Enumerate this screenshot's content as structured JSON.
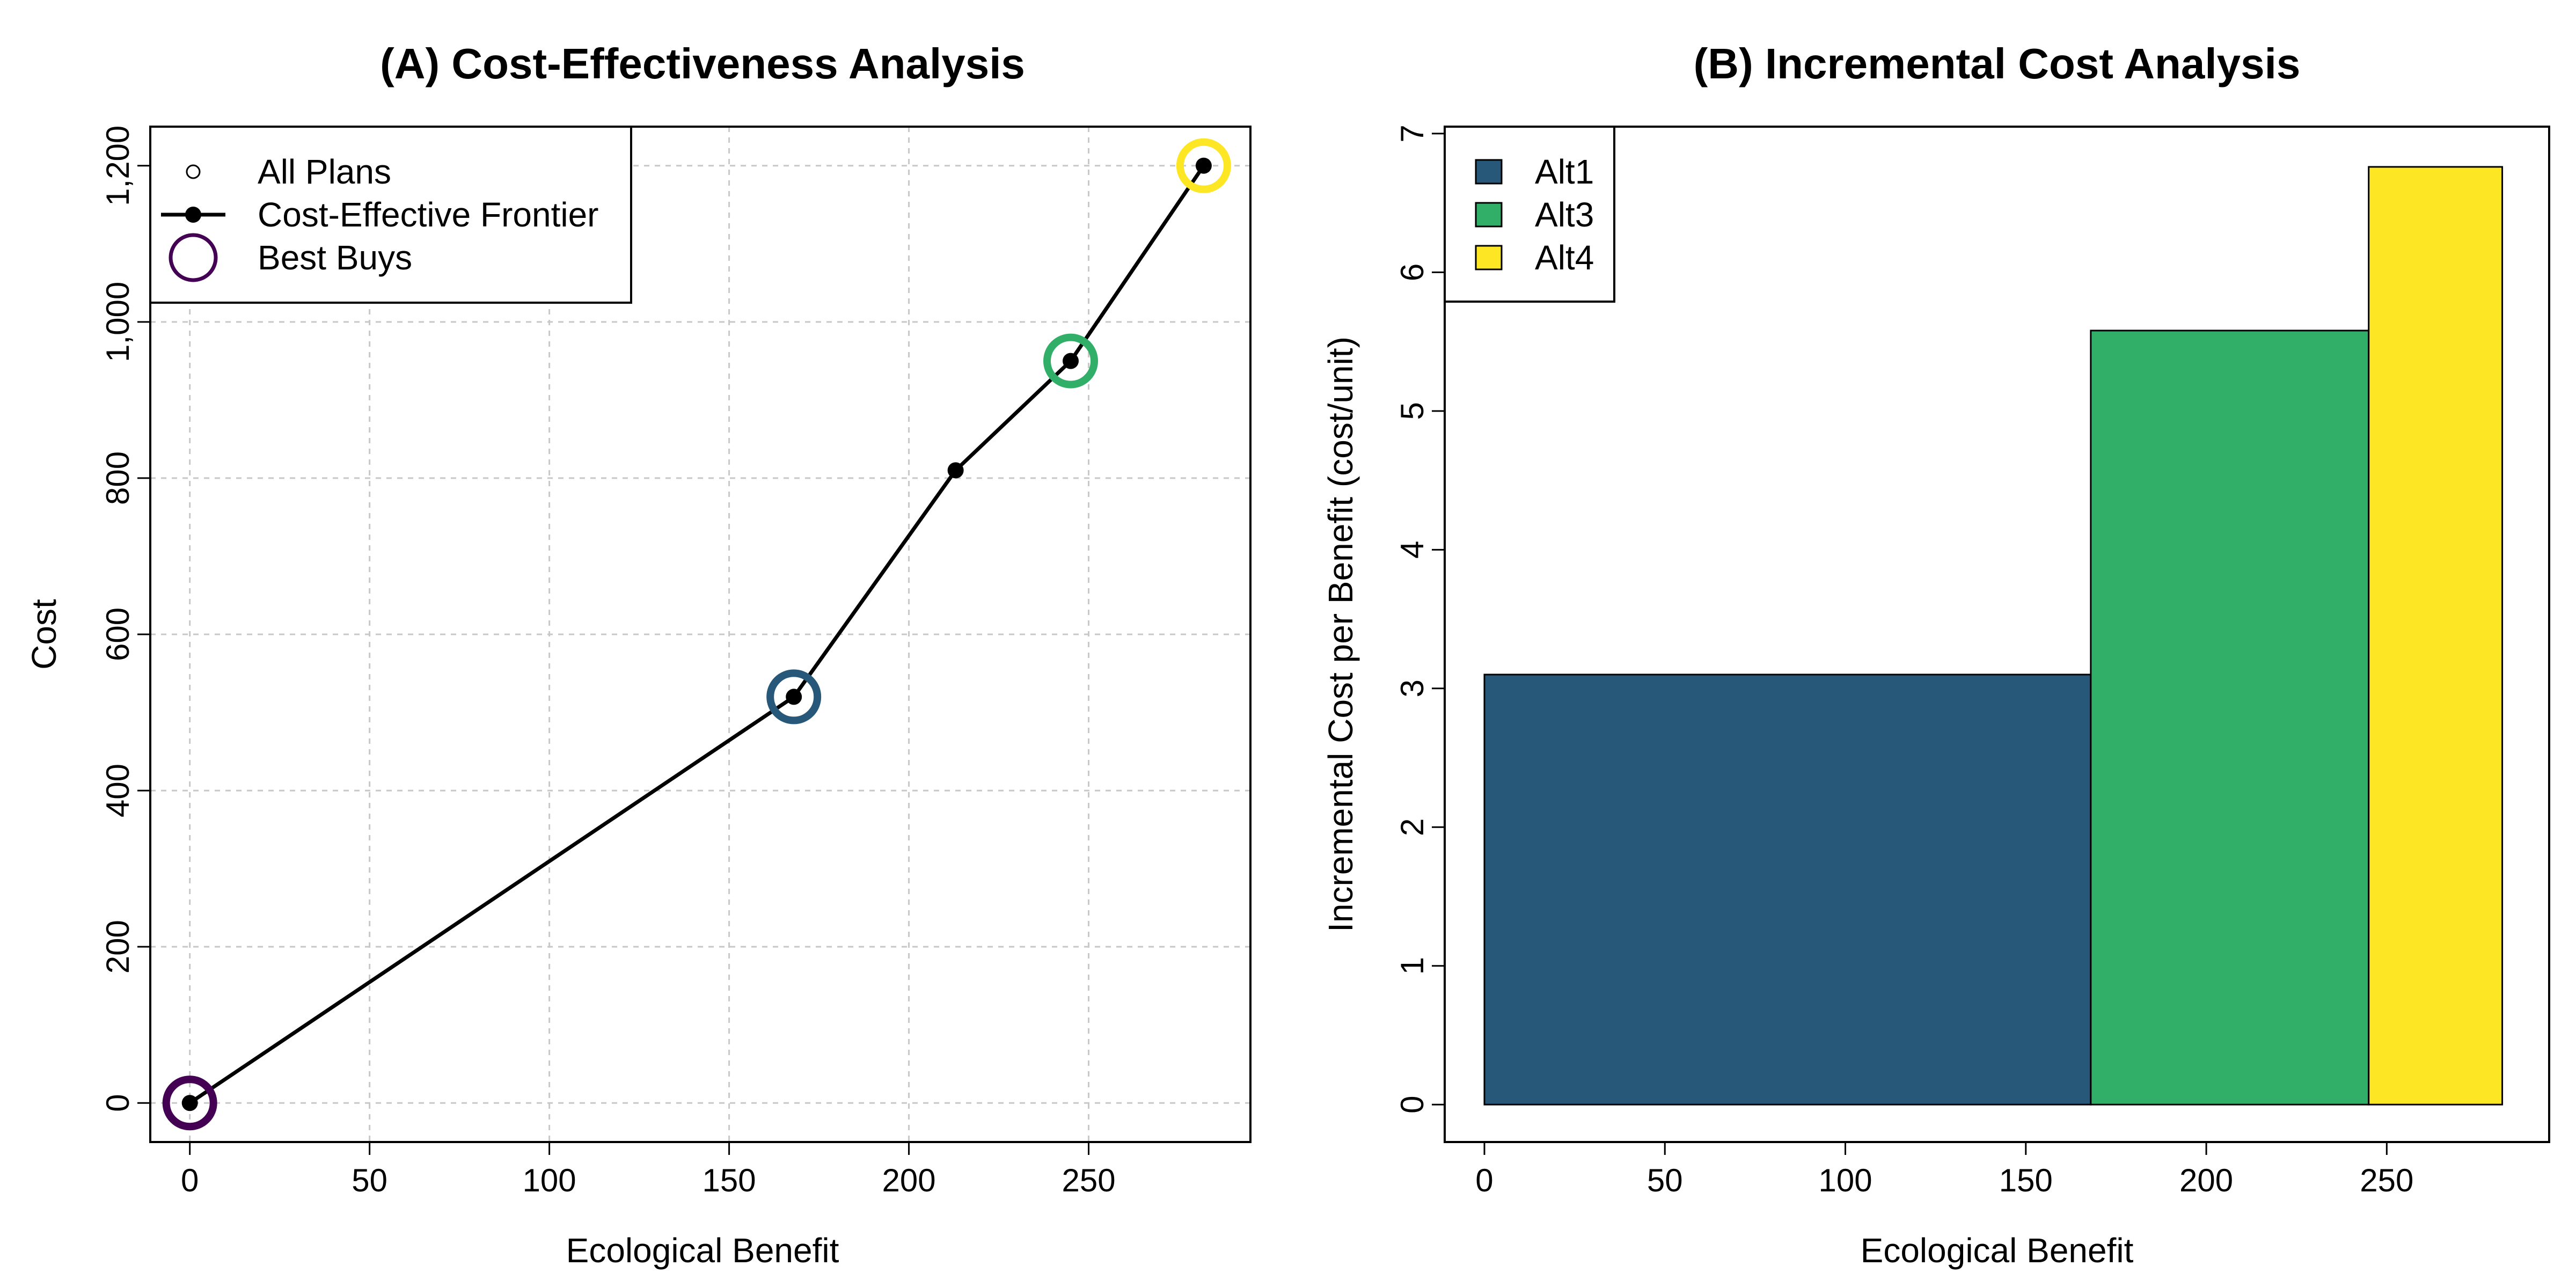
{
  "colors": {
    "alt1": "#275779",
    "alt3": "#31AE68",
    "alt4": "#FDE725",
    "origin": "#440154",
    "line": "#000000",
    "grid": "#c8c8c8"
  },
  "chart_data": [
    {
      "type": "scatter",
      "title": "(A) Cost-Effectiveness Analysis",
      "xlabel": "Ecological Benefit",
      "ylabel": "Cost",
      "xlim": [
        -11,
        295
      ],
      "ylim": [
        -50,
        1250
      ],
      "x_ticks": [
        0,
        50,
        100,
        150,
        200,
        250
      ],
      "x_tick_labels": [
        "0",
        "50",
        "100",
        "150",
        "200",
        "250"
      ],
      "y_ticks": [
        0,
        200,
        400,
        600,
        800,
        1000,
        1200
      ],
      "y_tick_labels": [
        "0",
        "200",
        "400",
        "600",
        "800",
        "1,000",
        "1,200"
      ],
      "grid": true,
      "legend_position": "top-left",
      "legend": [
        {
          "key": "all",
          "label": "All Plans"
        },
        {
          "key": "frontier",
          "label": "Cost-Effective Frontier"
        },
        {
          "key": "bestbuys",
          "label": "Best Buys"
        }
      ],
      "plans": [
        {
          "x": 0,
          "y": 0
        },
        {
          "x": 168,
          "y": 520
        },
        {
          "x": 213,
          "y": 810
        },
        {
          "x": 245,
          "y": 950
        },
        {
          "x": 282,
          "y": 1200
        }
      ],
      "frontier": [
        {
          "x": 0,
          "y": 0
        },
        {
          "x": 168,
          "y": 520
        },
        {
          "x": 213,
          "y": 810
        },
        {
          "x": 245,
          "y": 950
        },
        {
          "x": 282,
          "y": 1200
        }
      ],
      "best_buys": [
        {
          "x": 0,
          "y": 0,
          "color_key": "origin"
        },
        {
          "x": 168,
          "y": 520,
          "color_key": "alt1"
        },
        {
          "x": 245,
          "y": 950,
          "color_key": "alt3"
        },
        {
          "x": 282,
          "y": 1200,
          "color_key": "alt4"
        }
      ]
    },
    {
      "type": "bar",
      "title": "(B) Incremental Cost Analysis",
      "xlabel": "Ecological Benefit",
      "ylabel": "Incremental Cost per Benefit (cost/unit)",
      "xlim": [
        -11,
        295
      ],
      "ylim": [
        -0.27,
        7.05
      ],
      "x_ticks": [
        0,
        50,
        100,
        150,
        200,
        250
      ],
      "x_tick_labels": [
        "0",
        "50",
        "100",
        "150",
        "200",
        "250"
      ],
      "y_ticks": [
        0,
        1,
        2,
        3,
        4,
        5,
        6,
        7
      ],
      "y_tick_labels": [
        "0",
        "1",
        "2",
        "3",
        "4",
        "5",
        "6",
        "7"
      ],
      "grid": false,
      "legend_position": "top-left",
      "series": [
        {
          "name": "Alt1",
          "x_start": 0,
          "x_end": 168,
          "value": 3.1,
          "color_key": "alt1"
        },
        {
          "name": "Alt3",
          "x_start": 168,
          "x_end": 245,
          "value": 5.58,
          "color_key": "alt3"
        },
        {
          "name": "Alt4",
          "x_start": 245,
          "x_end": 282,
          "value": 6.76,
          "color_key": "alt4"
        }
      ]
    }
  ]
}
